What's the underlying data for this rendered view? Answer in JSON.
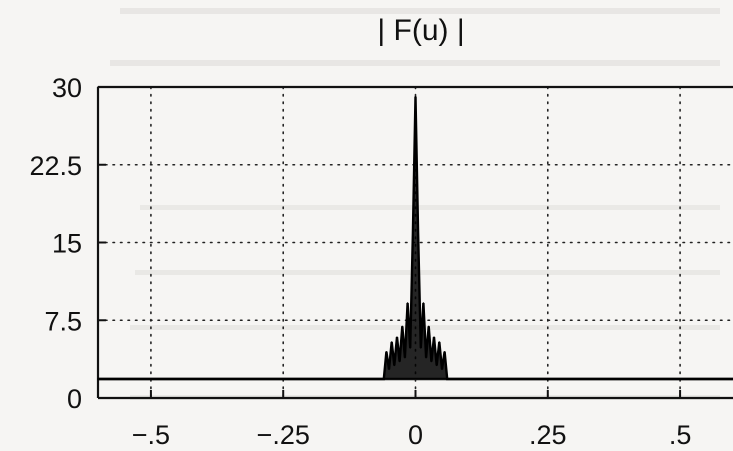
{
  "chart_data": {
    "type": "line",
    "title": "| F(u) |",
    "xlabel": "",
    "ylabel": "",
    "xlim": [
      -0.6,
      0.6
    ],
    "ylim": [
      0,
      30
    ],
    "grid": true,
    "x_ticks": [
      -0.5,
      -0.25,
      0,
      0.25,
      0.5
    ],
    "x_tick_labels": [
      "−.5",
      "−.25",
      "0",
      ".25",
      ".5"
    ],
    "y_ticks": [
      0,
      7.5,
      15,
      22.5,
      30
    ],
    "y_tick_labels": [
      "0",
      "7.5",
      "15",
      "22.5",
      "30"
    ],
    "series": [
      {
        "x": [
          -0.6,
          -0.06,
          -0.055,
          -0.05,
          -0.045,
          -0.04,
          -0.035,
          -0.03,
          -0.025,
          -0.02,
          -0.015,
          -0.01,
          -0.005,
          0,
          0.005,
          0.01,
          0.015,
          0.02,
          0.025,
          0.03,
          0.035,
          0.04,
          0.045,
          0.05,
          0.055,
          0.06,
          0.6
        ],
        "y": [
          0,
          0,
          2.8,
          1.0,
          3.8,
          1.4,
          4.3,
          1.8,
          5.4,
          2.2,
          7.8,
          3.2,
          15.0,
          29.0,
          15.0,
          3.2,
          7.8,
          2.2,
          5.4,
          1.8,
          4.3,
          1.4,
          3.8,
          1.0,
          2.8,
          0,
          0
        ]
      }
    ]
  },
  "colors": {
    "line": "#000000",
    "grid": "#222222",
    "page": "#f6f5f3"
  }
}
